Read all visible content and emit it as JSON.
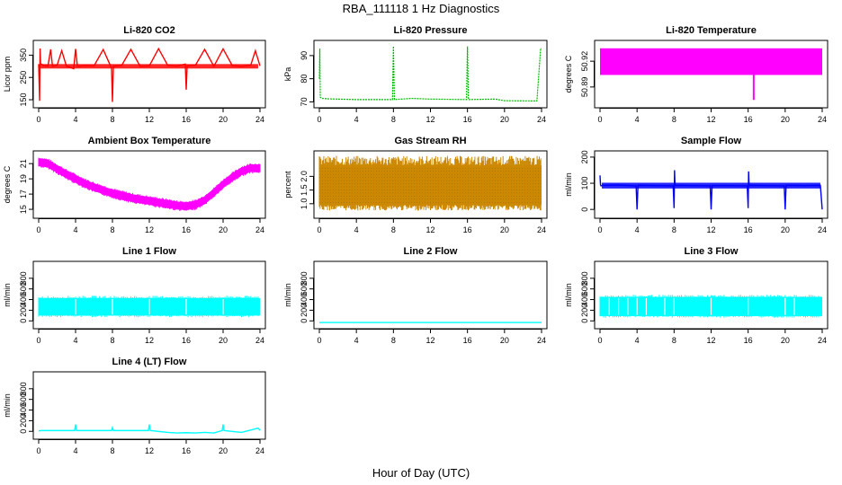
{
  "figure": {
    "title": "RBA_111118  1 Hz Diagnostics",
    "xlabel": "Hour of Day (UTC)",
    "x_ticks": [
      0,
      4,
      8,
      12,
      16,
      20,
      24
    ]
  },
  "chart_data": [
    {
      "id": "co2",
      "type": "line",
      "title": "Li-820 CO2",
      "ylabel": "Licor ppm",
      "color": "#ff0000",
      "xlim": [
        0,
        24
      ],
      "ylim": [
        130,
        400
      ],
      "yticks": [
        150,
        250,
        350
      ],
      "yticklabels": [
        "150",
        "250",
        "350"
      ],
      "x": [
        0,
        0.1,
        0.15,
        0.2,
        0.5,
        1,
        1.3,
        1.5,
        2,
        2.5,
        3,
        3.8,
        4,
        4.2,
        5,
        6,
        7,
        7.9,
        8,
        8.1,
        9,
        10,
        11,
        12,
        13,
        14,
        15,
        15.9,
        16,
        16.1,
        17,
        18,
        19,
        20,
        21,
        22,
        23,
        23.5,
        24
      ],
      "y": [
        310,
        145,
        380,
        312,
        304,
        301,
        376,
        300,
        305,
        370,
        302,
        289,
        378,
        300,
        303,
        302,
        375,
        292,
        140,
        301,
        304,
        376,
        300,
        302,
        379,
        304,
        301,
        310,
        195,
        302,
        305,
        376,
        300,
        378,
        303,
        300,
        305,
        370,
        302
      ],
      "band": [
        290,
        310
      ]
    },
    {
      "id": "pressure",
      "type": "line",
      "title": "Li-820 Pressure",
      "ylabel": "kPa",
      "color": "#00bb00",
      "xlim": [
        0,
        24
      ],
      "ylim": [
        69,
        95
      ],
      "yticks": [
        70,
        80,
        90
      ],
      "yticklabels": [
        "70",
        "80",
        "90"
      ],
      "x": [
        0,
        0.05,
        0.1,
        0.3,
        1,
        4,
        7.9,
        8,
        8.1,
        10,
        12,
        15.9,
        16,
        16.1,
        19,
        20,
        23.5,
        23.9,
        24
      ],
      "y": [
        80,
        93,
        72,
        71.5,
        71.3,
        71,
        71,
        94,
        71,
        71.5,
        71.2,
        71,
        94,
        71,
        71.2,
        70.5,
        70.4,
        93,
        93
      ]
    },
    {
      "id": "temperature",
      "type": "area",
      "title": "Li-820 Temperature",
      "ylabel": "degrees C",
      "color": "#ff00ff",
      "xlim": [
        0,
        24
      ],
      "ylim": [
        50.87,
        50.94
      ],
      "yticks": [
        50.89,
        50.92
      ],
      "yticklabels": [
        "50.89",
        "50.92"
      ],
      "band": [
        50.904,
        50.935
      ],
      "spike": {
        "x": 16.6,
        "y": 50.875
      }
    },
    {
      "id": "ambient",
      "type": "area",
      "title": "Ambient Box Temperature",
      "ylabel": "degrees C",
      "color": "#ff00ff",
      "xlim": [
        0,
        24
      ],
      "ylim": [
        14.3,
        22.2
      ],
      "yticks": [
        15,
        17,
        19,
        21
      ],
      "yticklabels": [
        "15",
        "17",
        "19",
        "21"
      ],
      "x": [
        0,
        1,
        2,
        3,
        4,
        5,
        6,
        7,
        8,
        9,
        10,
        11,
        12,
        13,
        14,
        15,
        16,
        17,
        18,
        19,
        20,
        21,
        22,
        23,
        24
      ],
      "y": [
        21.2,
        21.0,
        20.3,
        19.6,
        19.0,
        18.4,
        17.9,
        17.5,
        17.1,
        16.8,
        16.5,
        16.3,
        16.1,
        15.9,
        15.7,
        15.5,
        15.4,
        15.6,
        16.2,
        17.2,
        18.3,
        19.2,
        20.0,
        20.4,
        20.4
      ],
      "spread": 0.9
    },
    {
      "id": "rh",
      "type": "area",
      "title": "Gas Stream RH",
      "ylabel": "percent",
      "color": "#dd9900",
      "xlim": [
        0,
        24
      ],
      "ylim": [
        0.6,
        2.8
      ],
      "yticks": [
        1.0,
        1.5,
        2.0
      ],
      "yticklabels": [
        "1.0",
        "1.5",
        "2.0"
      ],
      "band": [
        0.95,
        2.4
      ],
      "spikes": [
        0.7,
        2.75
      ]
    },
    {
      "id": "sample",
      "type": "line",
      "title": "Sample Flow",
      "ylabel": "ml/min",
      "color": "#0000ff",
      "xlim": [
        0,
        24
      ],
      "ylim": [
        -20,
        210
      ],
      "yticks": [
        0,
        100,
        200
      ],
      "yticklabels": [
        "0",
        "100",
        "200"
      ],
      "x": [
        0,
        0.05,
        0.1,
        0.3,
        2,
        3.9,
        4,
        4.1,
        6,
        7.9,
        8,
        8.05,
        8.1,
        10,
        11.9,
        12,
        12.1,
        14,
        15.9,
        16,
        16.05,
        16.1,
        18,
        19.9,
        20,
        20.1,
        22,
        23.8,
        24
      ],
      "y": [
        130,
        95,
        90,
        92,
        93,
        90,
        0,
        92,
        91,
        90,
        5,
        150,
        92,
        91,
        90,
        0,
        91,
        91,
        90,
        5,
        145,
        92,
        91,
        90,
        0,
        92,
        91,
        92,
        0
      ],
      "band": [
        80,
        102
      ]
    },
    {
      "id": "line1",
      "type": "area",
      "title": "Line 1 Flow",
      "ylabel": "ml/min",
      "color": "#00ffff",
      "xlim": [
        0,
        24
      ],
      "ylim": [
        -80,
        1050
      ],
      "yticks": [
        0,
        200,
        400,
        600,
        800
      ],
      "yticklabels": [
        "0",
        "200",
        "400",
        "600",
        "800"
      ],
      "band": [
        100,
        430
      ],
      "gaps": [
        4,
        8,
        12,
        16,
        20
      ]
    },
    {
      "id": "line2",
      "type": "line",
      "title": "Line 2 Flow",
      "ylabel": "ml/min",
      "color": "#00ffff",
      "xlim": [
        0,
        24
      ],
      "ylim": [
        -80,
        1050
      ],
      "yticks": [
        0,
        200,
        400,
        600,
        800
      ],
      "yticklabels": [
        "0",
        "200",
        "400",
        "600",
        "800"
      ],
      "x": [
        0,
        24
      ],
      "y": [
        -30,
        -30
      ]
    },
    {
      "id": "line3",
      "type": "area",
      "title": "Line 3 Flow",
      "ylabel": "ml/min",
      "color": "#00ffff",
      "xlim": [
        0,
        24
      ],
      "ylim": [
        -80,
        1050
      ],
      "yticks": [
        0,
        200,
        400,
        600,
        800
      ],
      "yticklabels": [
        "0",
        "200",
        "400",
        "600",
        "800"
      ],
      "band": [
        90,
        450
      ],
      "gaps": [
        1,
        2,
        3,
        4,
        5,
        7,
        8,
        12,
        16,
        20,
        21
      ]
    },
    {
      "id": "line4",
      "type": "line",
      "title": "Line 4 (LT) Flow",
      "ylabel": "ml/min",
      "color": "#00ffff",
      "xlim": [
        0,
        24
      ],
      "ylim": [
        -80,
        1050
      ],
      "yticks": [
        0,
        200,
        400,
        600,
        800
      ],
      "yticklabels": [
        "0",
        "200",
        "400",
        "600",
        "800"
      ],
      "x": [
        0,
        0.3,
        2,
        3.9,
        4,
        4.1,
        6,
        7.9,
        8,
        8.1,
        10,
        11.9,
        12,
        12.1,
        14,
        15,
        16,
        17,
        18,
        19,
        19.9,
        20,
        20.1,
        22,
        23.8,
        24
      ],
      "y": [
        10,
        15,
        15,
        15,
        130,
        15,
        15,
        15,
        70,
        15,
        15,
        15,
        130,
        15,
        -20,
        -30,
        -25,
        -30,
        -20,
        -30,
        15,
        130,
        15,
        -20,
        60,
        20
      ]
    }
  ]
}
